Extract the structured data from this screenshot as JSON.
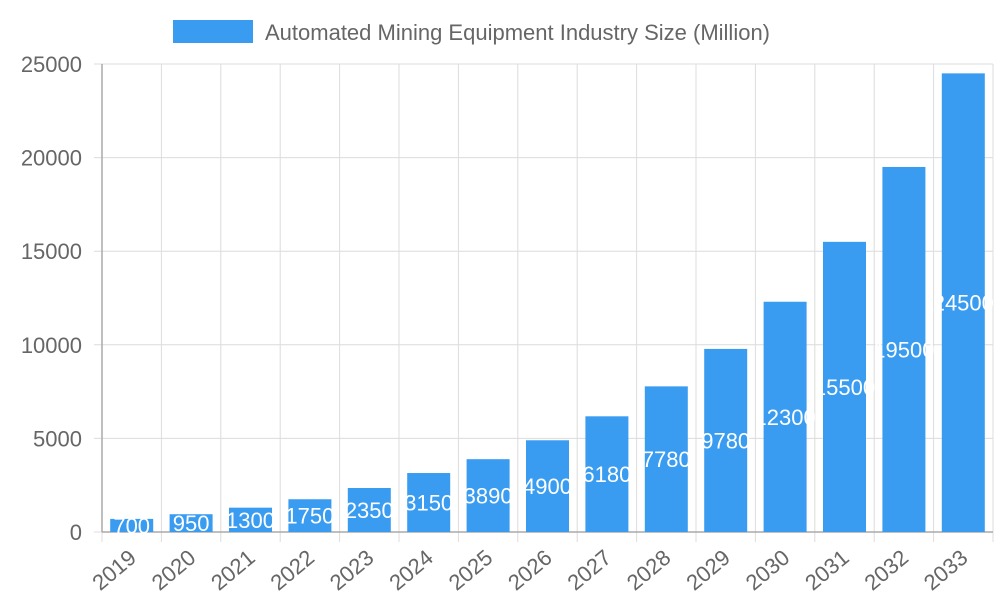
{
  "chart_data": {
    "type": "bar",
    "categories": [
      "2019",
      "2020",
      "2021",
      "2022",
      "2023",
      "2024",
      "2025",
      "2026",
      "2027",
      "2028",
      "2029",
      "2030",
      "2031",
      "2032",
      "2033"
    ],
    "series": [
      {
        "name": "Automated Mining Equipment Industry Size (Million)",
        "values": [
          700,
          950,
          1300,
          1750,
          2350,
          3150,
          3890,
          4900,
          6180,
          7780,
          9780,
          12300,
          15500,
          19500,
          24500
        ]
      }
    ],
    "ylim": [
      0,
      25000
    ],
    "yticks": [
      0,
      5000,
      10000,
      15000,
      20000,
      25000
    ],
    "grid": true,
    "legend": "top",
    "bar_color": "#399CF1",
    "data_labels": true
  }
}
